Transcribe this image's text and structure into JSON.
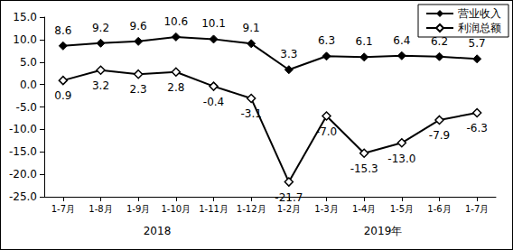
{
  "chart_data": {
    "type": "line",
    "categories": [
      "1-7月",
      "1-8月",
      "1-9月",
      "1-10月",
      "1-11月",
      "1-12月",
      "1-2月",
      "1-3月",
      "1-4月",
      "1-5月",
      "1-6月",
      "1-7月"
    ],
    "series": [
      {
        "name": "营业收入",
        "color": "#000000",
        "marker": "filled_diamond",
        "values": [
          8.6,
          9.2,
          9.6,
          10.6,
          10.1,
          9.1,
          3.3,
          6.3,
          6.1,
          6.4,
          6.2,
          5.7
        ]
      },
      {
        "name": "利润总额",
        "color": "#000000",
        "marker": "open_diamond",
        "values": [
          0.9,
          3.2,
          2.3,
          2.8,
          -0.4,
          -3.1,
          -21.7,
          -7.0,
          -15.3,
          -13.0,
          -7.9,
          -6.3
        ],
        "value_labels": [
          "0.9",
          "3.2",
          "2.3",
          "2.8",
          "-0.4",
          "-3.1",
          "-21.7",
          "-7.0",
          "-15.3",
          "-13.0",
          "-7.9",
          "-6.3"
        ]
      }
    ],
    "ylim": [
      -25,
      15
    ],
    "yticks": [
      {
        "value": -25,
        "label": "-25.0"
      },
      {
        "value": -20,
        "label": "-20.0"
      },
      {
        "value": -15,
        "label": "-15.0"
      },
      {
        "value": -10,
        "label": "-10.0"
      },
      {
        "value": -5,
        "label": "-5.0"
      },
      {
        "value": 0,
        "label": "0.0"
      },
      {
        "value": 5,
        "label": "5.0"
      },
      {
        "value": 10,
        "label": "10.0"
      },
      {
        "value": 15,
        "label": "15.0"
      }
    ],
    "data_labels": true,
    "legend": "top-right",
    "grid": false,
    "annotations": [
      {
        "text": "2018",
        "span": [
          0,
          5
        ]
      },
      {
        "text": "2019年",
        "span": [
          6,
          11
        ]
      }
    ]
  }
}
